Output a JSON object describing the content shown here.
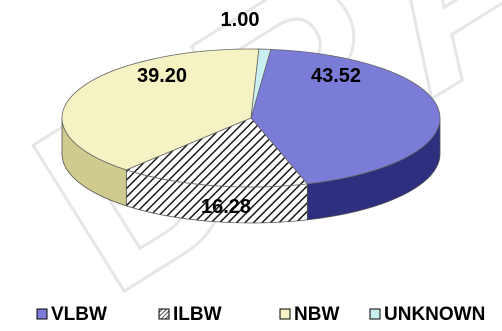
{
  "chart_data": {
    "type": "pie",
    "three_d": true,
    "categories": [
      "VLBW",
      "ILBW",
      "NBW",
      "UNKNOWN"
    ],
    "values": [
      43.52,
      16.28,
      39.2,
      1.0
    ],
    "value_labels": [
      "43.52",
      "16.28",
      "39.20",
      "1.00"
    ],
    "legend_position": "bottom",
    "watermark": "DRAFT",
    "colors": {
      "VLBW": {
        "top": "#7b7bd8",
        "side": "#2f2f80"
      },
      "ILBW": {
        "top": "#ffffff",
        "side": "#ffffff",
        "pattern": "diagonal-hatch",
        "hatch": "#1a1a1a"
      },
      "NBW": {
        "top": "#f5f2c4",
        "side": "#cfcb8e"
      },
      "UNKNOWN": {
        "top": "#c9f0f0",
        "side": "#8fcaca"
      }
    }
  }
}
